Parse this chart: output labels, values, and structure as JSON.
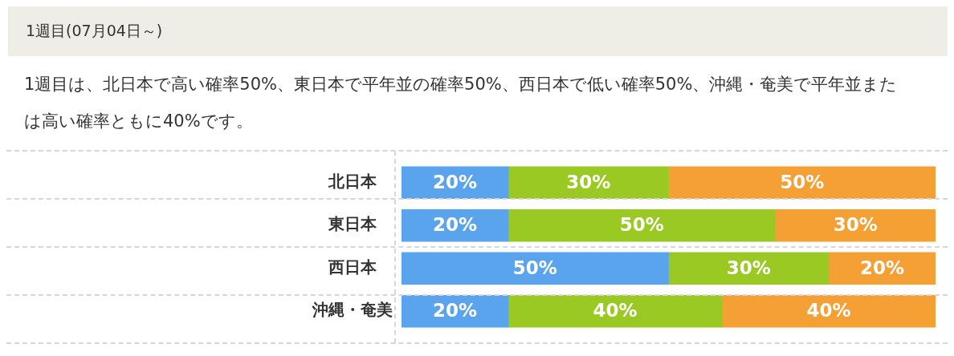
{
  "chart_data": {
    "type": "bar",
    "orientation": "horizontal",
    "stacked": true,
    "title": "1週目(07月04日～)",
    "subtitle": "1週目は、北日本で高い確率50%、東日本で平年並の確率50%、西日本で低い確率50%、沖縄・奄美で平年並または高い確率ともに40%です。",
    "categories": [
      "北日本",
      "東日本",
      "西日本",
      "沖縄・奄美"
    ],
    "series": [
      {
        "color": "#5aa4ee",
        "values": [
          20,
          20,
          50,
          20
        ],
        "value_labels": [
          "20%",
          "20%",
          "50%",
          "20%"
        ]
      },
      {
        "color": "#9bc923",
        "values": [
          30,
          50,
          30,
          40
        ],
        "value_labels": [
          "30%",
          "50%",
          "30%",
          "40%"
        ]
      },
      {
        "color": "#f5a034",
        "values": [
          50,
          30,
          20,
          40
        ],
        "value_labels": [
          "50%",
          "30%",
          "20%",
          "40%"
        ]
      }
    ],
    "tick_labels": "y",
    "legend": false,
    "grid": false
  }
}
